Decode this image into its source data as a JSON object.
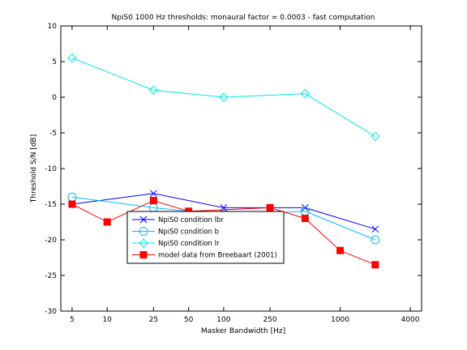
{
  "chart_data": {
    "type": "line",
    "title": "NpiS0 1000 Hz thresholds: monaural factor = 0.0003 - fast computation",
    "xlabel": "Masker Bandwidth [Hz]",
    "ylabel": "Threshold S/N [dB]",
    "x_scale": "log",
    "xlim": [
      4,
      5000
    ],
    "ylim": [
      -30,
      10
    ],
    "x_ticks": [
      5,
      10,
      25,
      50,
      100,
      250,
      1000,
      4000
    ],
    "y_ticks": [
      -30,
      -25,
      -20,
      -15,
      -10,
      -5,
      0,
      5,
      10
    ],
    "grid": false,
    "legend_placement": "bottom-center",
    "series": [
      {
        "name": "NpiS0 condition lbr",
        "color": "#0000ff",
        "marker": "x",
        "x": [
          5,
          25,
          100,
          500,
          2000
        ],
        "y": [
          -15,
          -13.5,
          -15.5,
          -15.5,
          -18.5
        ]
      },
      {
        "name": "NpiS0 condition b",
        "color": "#00bfff",
        "marker": "circle",
        "x": [
          5,
          25,
          100,
          500,
          2000
        ],
        "y": [
          -14,
          -15.5,
          -16.5,
          -16,
          -20
        ]
      },
      {
        "name": "NpiS0 condition lr",
        "color": "#00e6e6",
        "marker": "diamond",
        "x": [
          5,
          25,
          100,
          500,
          2000
        ],
        "y": [
          5.5,
          1,
          0,
          0.5,
          -5.5
        ]
      },
      {
        "name": "model data from Breebaart (2001)",
        "color": "#ff0000",
        "marker": "square",
        "x": [
          5,
          10,
          25,
          50,
          250,
          500,
          1000,
          2000
        ],
        "y": [
          -15,
          -17.5,
          -14.5,
          -16,
          -15.5,
          -17,
          -21.5,
          -23.5
        ]
      }
    ]
  }
}
